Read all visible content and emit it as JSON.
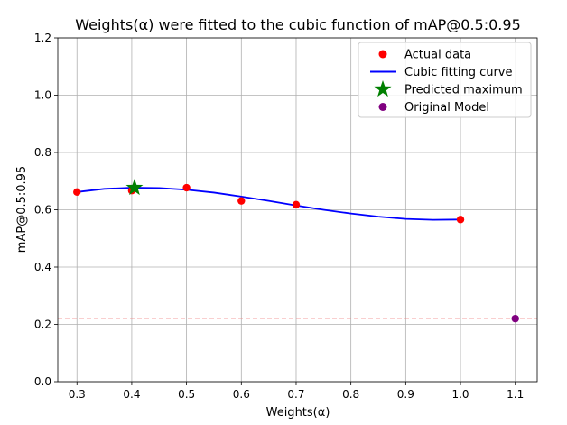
{
  "chart_data": {
    "type": "scatter",
    "title": "Weights(α) were fitted to the cubic function of mAP@0.5:0.95",
    "xlabel": "Weights(α)",
    "ylabel": "mAP@0.5:0.95",
    "xlim": [
      0.265,
      1.14
    ],
    "ylim": [
      0.0,
      1.2
    ],
    "xticks": [
      "0.3",
      "0.4",
      "0.5",
      "0.6",
      "0.7",
      "0.8",
      "0.9",
      "1.0",
      "1.1"
    ],
    "yticks": [
      "0.0",
      "0.2",
      "0.4",
      "0.6",
      "0.8",
      "1.0",
      "1.2"
    ],
    "grid": true,
    "legend_position": "upper-right",
    "series": [
      {
        "name": "Actual data",
        "kind": "scatter",
        "color": "#ff0000",
        "points": [
          {
            "x": 0.3,
            "y": 0.662
          },
          {
            "x": 0.4,
            "y": 0.667
          },
          {
            "x": 0.5,
            "y": 0.677
          },
          {
            "x": 0.6,
            "y": 0.631
          },
          {
            "x": 0.7,
            "y": 0.618
          },
          {
            "x": 1.0,
            "y": 0.566
          }
        ]
      },
      {
        "name": "Cubic fitting curve",
        "kind": "line",
        "color": "#0000ff",
        "points": [
          {
            "x": 0.3,
            "y": 0.662
          },
          {
            "x": 0.35,
            "y": 0.673
          },
          {
            "x": 0.4,
            "y": 0.677
          },
          {
            "x": 0.45,
            "y": 0.676
          },
          {
            "x": 0.5,
            "y": 0.67
          },
          {
            "x": 0.55,
            "y": 0.66
          },
          {
            "x": 0.6,
            "y": 0.646
          },
          {
            "x": 0.65,
            "y": 0.631
          },
          {
            "x": 0.7,
            "y": 0.615
          },
          {
            "x": 0.75,
            "y": 0.6
          },
          {
            "x": 0.8,
            "y": 0.587
          },
          {
            "x": 0.85,
            "y": 0.576
          },
          {
            "x": 0.9,
            "y": 0.568
          },
          {
            "x": 0.95,
            "y": 0.565
          },
          {
            "x": 1.0,
            "y": 0.566
          }
        ]
      },
      {
        "name": "Predicted maximum",
        "kind": "star",
        "color": "#008000",
        "points": [
          {
            "x": 0.405,
            "y": 0.677
          }
        ]
      },
      {
        "name": "Original Model",
        "kind": "scatter",
        "color": "#800080",
        "points": [
          {
            "x": 1.1,
            "y": 0.22
          }
        ]
      }
    ],
    "reference_lines": [
      {
        "orientation": "horizontal",
        "y": 0.22,
        "color": "#f08080",
        "style": "dashed"
      }
    ]
  }
}
